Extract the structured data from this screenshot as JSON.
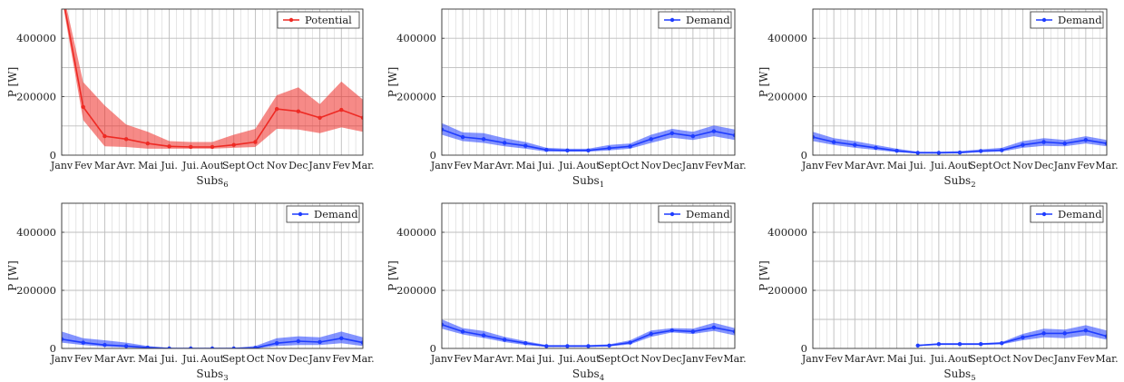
{
  "figure": {
    "colors": {
      "red": "#ee2a24",
      "blue": "#1f3dff",
      "grid": "#bdbdbd",
      "axis": "#333333"
    }
  },
  "chart_data": [
    {
      "type": "line",
      "title": "",
      "xlabel": "Subs",
      "xlabel_sub": "6",
      "ylabel": "P [W]",
      "ylim": [
        0,
        500000
      ],
      "yticks": [
        0,
        200000,
        400000
      ],
      "ytick_labels": [
        "0",
        "200000",
        "400000"
      ],
      "categories": [
        "Janv",
        "Fev",
        "Mar",
        "Avr.",
        "Mai",
        "Jui.",
        "Jui.",
        "Aout",
        "Sept",
        "Oct",
        "Nov",
        "Dec",
        "Janv",
        "Fev",
        "Mar."
      ],
      "grid": true,
      "legend_position": "top-right",
      "series": [
        {
          "name": "Potential",
          "color": "#ee2a24",
          "values": [
            560000,
            165000,
            65000,
            55000,
            40000,
            30000,
            28000,
            28000,
            35000,
            45000,
            158000,
            150000,
            128000,
            155000,
            128000
          ],
          "lower": [
            540000,
            120000,
            30000,
            28000,
            22000,
            22000,
            22000,
            22000,
            25000,
            28000,
            90000,
            88000,
            75000,
            95000,
            80000
          ],
          "upper": [
            580000,
            250000,
            170000,
            105000,
            80000,
            48000,
            45000,
            45000,
            70000,
            90000,
            205000,
            232000,
            175000,
            252000,
            190000
          ]
        }
      ]
    },
    {
      "type": "line",
      "title": "",
      "xlabel": "Subs",
      "xlabel_sub": "1",
      "ylabel": "P [W]",
      "ylim": [
        0,
        500000
      ],
      "yticks": [
        0,
        200000,
        400000
      ],
      "ytick_labels": [
        "0",
        "200000",
        "400000"
      ],
      "categories": [
        "Janv",
        "Fev",
        "Mar",
        "Avr.",
        "Mai",
        "Jui.",
        "Jui.",
        "Aout",
        "Sept",
        "Oct",
        "Nov",
        "Dec",
        "Janv",
        "Fev",
        "Mar."
      ],
      "grid": true,
      "legend_position": "top-right",
      "series": [
        {
          "name": "Demand",
          "color": "#1f3dff",
          "values": [
            88000,
            62000,
            55000,
            42000,
            32000,
            18000,
            16000,
            16000,
            24000,
            30000,
            55000,
            75000,
            65000,
            82000,
            68000
          ],
          "lower": [
            70000,
            48000,
            42000,
            30000,
            22000,
            12000,
            12000,
            12000,
            16000,
            22000,
            42000,
            60000,
            52000,
            65000,
            52000
          ],
          "upper": [
            110000,
            78000,
            75000,
            58000,
            45000,
            25000,
            22000,
            22000,
            35000,
            40000,
            70000,
            90000,
            80000,
            102000,
            88000
          ]
        }
      ]
    },
    {
      "type": "line",
      "title": "",
      "xlabel": "Subs",
      "xlabel_sub": "2",
      "ylabel": "P [W]",
      "ylim": [
        0,
        500000
      ],
      "yticks": [
        0,
        200000,
        400000
      ],
      "ytick_labels": [
        "0",
        "200000",
        "400000"
      ],
      "categories": [
        "Janv",
        "Fev",
        "Mar",
        "Avr.",
        "Mai",
        "Jui.",
        "Jui.",
        "Aout",
        "Sept",
        "Oct",
        "Nov",
        "Dec",
        "Janv",
        "Fev",
        "Mar."
      ],
      "grid": true,
      "legend_position": "top-right",
      "series": [
        {
          "name": "Demand",
          "color": "#1f3dff",
          "values": [
            62000,
            45000,
            35000,
            25000,
            15000,
            8000,
            8000,
            9000,
            14000,
            17000,
            35000,
            45000,
            40000,
            52000,
            40000
          ],
          "lower": [
            48000,
            35000,
            25000,
            18000,
            10000,
            6000,
            6000,
            6000,
            10000,
            12000,
            25000,
            32000,
            30000,
            40000,
            30000
          ],
          "upper": [
            80000,
            58000,
            48000,
            35000,
            22000,
            12000,
            12000,
            14000,
            20000,
            25000,
            48000,
            58000,
            52000,
            65000,
            52000
          ]
        }
      ]
    },
    {
      "type": "line",
      "title": "",
      "xlabel": "Subs",
      "xlabel_sub": "3",
      "ylabel": "P [W]",
      "ylim": [
        0,
        500000
      ],
      "yticks": [
        0,
        200000,
        400000
      ],
      "ytick_labels": [
        "0",
        "200000",
        "400000"
      ],
      "categories": [
        "Janv",
        "Fev",
        "Mar",
        "Avr.",
        "Mai",
        "Jui.",
        "Jui.",
        "Aout",
        "Sept",
        "Oct",
        "Nov",
        "Dec",
        "Janv",
        "Fev",
        "Mar."
      ],
      "grid": true,
      "legend_position": "top-right",
      "series": [
        {
          "name": "Demand",
          "color": "#1f3dff",
          "values": [
            32000,
            20000,
            12000,
            8000,
            3000,
            0,
            0,
            0,
            0,
            2000,
            18000,
            25000,
            22000,
            35000,
            20000
          ],
          "lower": [
            20000,
            12000,
            6000,
            3000,
            0,
            0,
            0,
            0,
            0,
            0,
            8000,
            12000,
            12000,
            18000,
            8000
          ],
          "upper": [
            58000,
            35000,
            28000,
            20000,
            8000,
            2000,
            1000,
            1000,
            2000,
            8000,
            35000,
            42000,
            38000,
            58000,
            38000
          ]
        }
      ]
    },
    {
      "type": "line",
      "title": "",
      "xlabel": "Subs",
      "xlabel_sub": "4",
      "ylabel": "P [W]",
      "ylim": [
        0,
        500000
      ],
      "yticks": [
        0,
        200000,
        400000
      ],
      "ytick_labels": [
        "0",
        "200000",
        "400000"
      ],
      "categories": [
        "Janv",
        "Fev",
        "Mar",
        "Avr.",
        "Mai",
        "Jui.",
        "Jui.",
        "Aout",
        "Sept",
        "Oct",
        "Nov",
        "Dec",
        "Janv",
        "Fev",
        "Mar."
      ],
      "grid": true,
      "legend_position": "top-right",
      "series": [
        {
          "name": "Demand",
          "color": "#1f3dff",
          "values": [
            82000,
            58000,
            45000,
            30000,
            18000,
            8000,
            8000,
            8000,
            10000,
            20000,
            50000,
            62000,
            58000,
            72000,
            58000
          ],
          "lower": [
            68000,
            48000,
            36000,
            22000,
            12000,
            5000,
            5000,
            5000,
            7000,
            14000,
            40000,
            55000,
            50000,
            60000,
            45000
          ],
          "upper": [
            100000,
            70000,
            60000,
            40000,
            25000,
            12000,
            12000,
            12000,
            14000,
            28000,
            62000,
            70000,
            68000,
            88000,
            70000
          ]
        }
      ]
    },
    {
      "type": "line",
      "title": "",
      "xlabel": "Subs",
      "xlabel_sub": "5",
      "ylabel": "P [W]",
      "ylim": [
        0,
        500000
      ],
      "yticks": [
        0,
        200000,
        400000
      ],
      "ytick_labels": [
        "0",
        "200000",
        "400000"
      ],
      "categories": [
        "Janv",
        "Fev",
        "Mar",
        "Avr.",
        "Mai",
        "Jui.",
        "Jui.",
        "Aout",
        "Sept",
        "Oct",
        "Nov",
        "Dec",
        "Janv",
        "Fev",
        "Mar."
      ],
      "grid": true,
      "legend_position": "top-right",
      "series": [
        {
          "name": "Demand",
          "color": "#1f3dff",
          "values": [
            null,
            null,
            null,
            null,
            null,
            10000,
            15000,
            15000,
            15000,
            18000,
            38000,
            52000,
            52000,
            62000,
            42000
          ],
          "lower": [
            null,
            null,
            null,
            null,
            null,
            8000,
            12000,
            12000,
            12000,
            14000,
            28000,
            38000,
            35000,
            45000,
            30000
          ],
          "upper": [
            null,
            null,
            null,
            null,
            null,
            13000,
            18000,
            18000,
            18000,
            22000,
            50000,
            68000,
            65000,
            80000,
            62000
          ]
        }
      ]
    }
  ]
}
